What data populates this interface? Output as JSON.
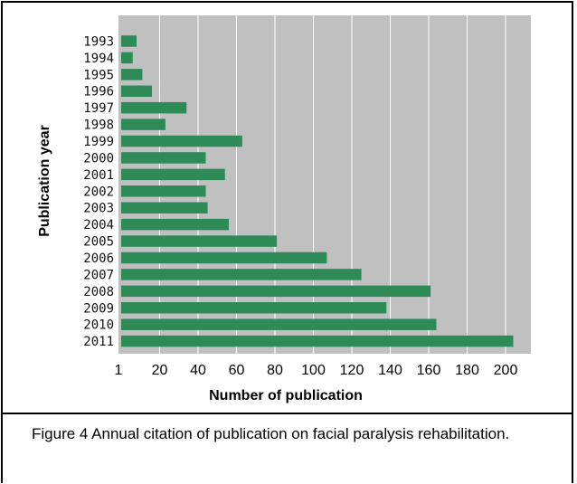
{
  "chart_data": {
    "type": "bar",
    "orientation": "horizontal",
    "categories": [
      "1993",
      "1994",
      "1995",
      "1996",
      "1997",
      "1998",
      "1999",
      "2000",
      "2001",
      "2002",
      "2003",
      "2004",
      "2005",
      "2006",
      "2007",
      "2008",
      "2009",
      "2010",
      "2011"
    ],
    "values": [
      8,
      6,
      11,
      16,
      34,
      23,
      63,
      44,
      54,
      44,
      45,
      56,
      81,
      107,
      125,
      161,
      138,
      164,
      204
    ],
    "xlabel": "Number of publication",
    "ylabel": "Publication year",
    "xticks": [
      "1",
      "20",
      "40",
      "60",
      "80",
      "100",
      "120",
      "140",
      "160",
      "180",
      "200"
    ],
    "xlim": [
      0,
      210
    ],
    "grid": true,
    "bar_color": "#2e8b57",
    "plot_background": "#c0c0c0",
    "gridline_color": "#ffffff"
  },
  "caption": "Figure 4    Annual citation of publication on facial paralysis rehabilitation."
}
